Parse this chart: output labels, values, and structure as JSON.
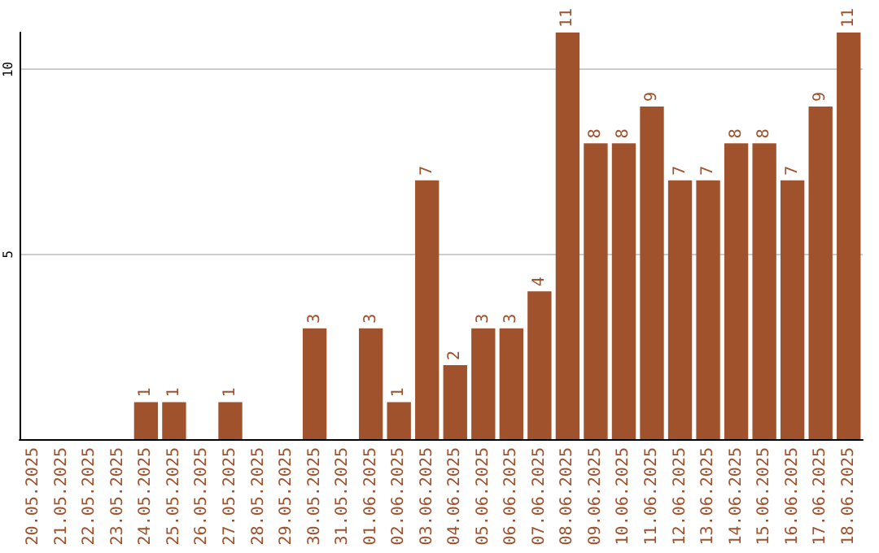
{
  "chart_data": {
    "type": "bar",
    "categories": [
      "20.05.2025",
      "21.05.2025",
      "22.05.2025",
      "23.05.2025",
      "24.05.2025",
      "25.05.2025",
      "26.05.2025",
      "27.05.2025",
      "28.05.2025",
      "29.05.2025",
      "30.05.2025",
      "31.05.2025",
      "01.06.2025",
      "02.06.2025",
      "03.06.2025",
      "04.06.2025",
      "05.06.2025",
      "06.06.2025",
      "07.06.2025",
      "08.06.2025",
      "09.06.2025",
      "10.06.2025",
      "11.06.2025",
      "12.06.2025",
      "13.06.2025",
      "14.06.2025",
      "15.06.2025",
      "16.06.2025",
      "17.06.2025",
      "18.06.2025"
    ],
    "values": [
      0,
      0,
      0,
      0,
      1,
      1,
      0,
      1,
      0,
      0,
      3,
      0,
      3,
      1,
      7,
      2,
      3,
      3,
      4,
      11,
      8,
      8,
      9,
      7,
      7,
      8,
      8,
      7,
      9,
      11
    ],
    "value_labels": [
      null,
      null,
      null,
      null,
      "1",
      "1",
      null,
      "1",
      null,
      null,
      "3",
      null,
      "3",
      "1",
      "7",
      "2",
      "3",
      "3",
      "4",
      "11",
      "8",
      "8",
      "9",
      "7",
      "7",
      "8",
      "8",
      "7",
      "9",
      "11"
    ],
    "color": "#a0522d",
    "ylim": [
      0,
      11
    ],
    "yticks": [
      5,
      10
    ],
    "grid": "y"
  }
}
